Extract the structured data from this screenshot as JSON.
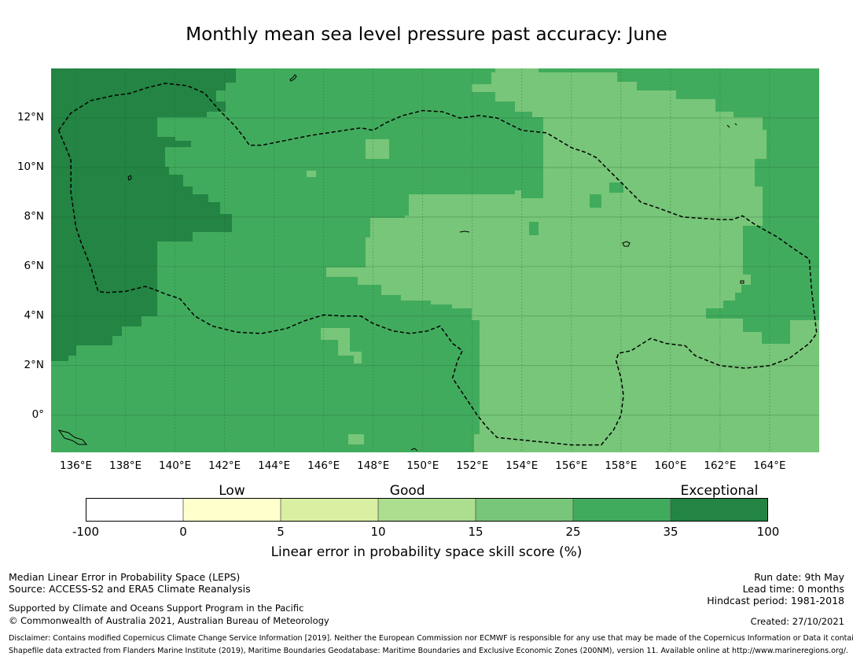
{
  "title": "Monthly mean sea level pressure past accuracy: June",
  "map": {
    "lon_range": [
      135.0,
      166.0
    ],
    "lat_range": [
      -1.5,
      14.0
    ],
    "x_ticks": [
      {
        "lon": 136,
        "label": "136°E"
      },
      {
        "lon": 138,
        "label": "138°E"
      },
      {
        "lon": 140,
        "label": "140°E"
      },
      {
        "lon": 142,
        "label": "142°E"
      },
      {
        "lon": 144,
        "label": "144°E"
      },
      {
        "lon": 146,
        "label": "146°E"
      },
      {
        "lon": 148,
        "label": "148°E"
      },
      {
        "lon": 150,
        "label": "150°E"
      },
      {
        "lon": 152,
        "label": "152°E"
      },
      {
        "lon": 154,
        "label": "154°E"
      },
      {
        "lon": 156,
        "label": "156°E"
      },
      {
        "lon": 158,
        "label": "158°E"
      },
      {
        "lon": 160,
        "label": "160°E"
      },
      {
        "lon": 162,
        "label": "162°E"
      },
      {
        "lon": 164,
        "label": "164°E"
      }
    ],
    "y_ticks": [
      {
        "lat": 12,
        "label": "12°N"
      },
      {
        "lat": 10,
        "label": "10°N"
      },
      {
        "lat": 8,
        "label": "8°N"
      },
      {
        "lat": 6,
        "label": "6°N"
      },
      {
        "lat": 4,
        "label": "4°N"
      },
      {
        "lat": 2,
        "label": "2°N"
      },
      {
        "lat": 0,
        "label": "0°"
      }
    ],
    "boundary_lonlat": [
      [
        135.3,
        11.5
      ],
      [
        135.8,
        12.2
      ],
      [
        136.6,
        12.7
      ],
      [
        137.5,
        12.9
      ],
      [
        138.2,
        13.0
      ],
      [
        138.8,
        13.2
      ],
      [
        139.6,
        13.4
      ],
      [
        140.5,
        13.3
      ],
      [
        141.2,
        13.0
      ],
      [
        141.8,
        12.3
      ],
      [
        142.4,
        11.7
      ],
      [
        142.8,
        11.2
      ],
      [
        143.0,
        10.9
      ],
      [
        143.5,
        10.9
      ],
      [
        144.5,
        11.1
      ],
      [
        145.5,
        11.3
      ],
      [
        146.5,
        11.45
      ],
      [
        147.5,
        11.6
      ],
      [
        148.0,
        11.5
      ],
      [
        148.5,
        11.8
      ],
      [
        149.2,
        12.1
      ],
      [
        150.0,
        12.3
      ],
      [
        150.8,
        12.25
      ],
      [
        151.5,
        12.0
      ],
      [
        152.3,
        12.1
      ],
      [
        153.0,
        12.0
      ],
      [
        153.6,
        11.7
      ],
      [
        154.0,
        11.5
      ],
      [
        155.0,
        11.4
      ],
      [
        156.0,
        10.8
      ],
      [
        156.6,
        10.6
      ],
      [
        157.0,
        10.4
      ],
      [
        157.5,
        9.9
      ],
      [
        158.2,
        9.2
      ],
      [
        158.8,
        8.6
      ],
      [
        159.4,
        8.4
      ],
      [
        160.5,
        8.0
      ],
      [
        162.0,
        7.9
      ],
      [
        162.5,
        7.9
      ],
      [
        162.9,
        8.05
      ],
      [
        163.4,
        7.7
      ],
      [
        164.3,
        7.2
      ],
      [
        165.0,
        6.7
      ],
      [
        165.6,
        6.3
      ],
      [
        165.7,
        5.0
      ],
      [
        165.9,
        3.3
      ],
      [
        165.6,
        2.9
      ],
      [
        164.8,
        2.3
      ],
      [
        164.0,
        2.0
      ],
      [
        163.0,
        1.9
      ],
      [
        162.0,
        2.0
      ],
      [
        161.0,
        2.4
      ],
      [
        160.6,
        2.8
      ],
      [
        159.8,
        2.9
      ],
      [
        159.2,
        3.1
      ],
      [
        158.4,
        2.6
      ],
      [
        157.9,
        2.5
      ],
      [
        157.8,
        2.2
      ],
      [
        158.0,
        1.5
      ],
      [
        158.1,
        0.8
      ],
      [
        158.0,
        0.0
      ],
      [
        157.7,
        -0.6
      ],
      [
        157.2,
        -1.2
      ],
      [
        156.0,
        -1.2
      ],
      [
        155.0,
        -1.1
      ],
      [
        154.0,
        -1.0
      ],
      [
        153.0,
        -0.9
      ],
      [
        152.6,
        -0.5
      ],
      [
        152.2,
        0.0
      ],
      [
        151.8,
        0.6
      ],
      [
        151.4,
        1.2
      ],
      [
        151.2,
        1.5
      ],
      [
        151.4,
        2.2
      ],
      [
        151.6,
        2.6
      ],
      [
        151.2,
        2.9
      ],
      [
        150.7,
        3.6
      ],
      [
        150.2,
        3.4
      ],
      [
        149.5,
        3.3
      ],
      [
        148.8,
        3.4
      ],
      [
        148.0,
        3.7
      ],
      [
        147.5,
        4.0
      ],
      [
        146.8,
        4.0
      ],
      [
        146.0,
        4.05
      ],
      [
        145.2,
        3.8
      ],
      [
        144.5,
        3.5
      ],
      [
        143.5,
        3.3
      ],
      [
        142.5,
        3.35
      ],
      [
        141.5,
        3.6
      ],
      [
        140.8,
        4.0
      ],
      [
        140.2,
        4.7
      ],
      [
        139.6,
        4.9
      ],
      [
        139.1,
        5.1
      ],
      [
        138.8,
        5.2
      ],
      [
        138.0,
        5.0
      ],
      [
        137.2,
        4.95
      ],
      [
        136.9,
        5.0
      ],
      [
        136.6,
        6.0
      ],
      [
        136.2,
        7.0
      ],
      [
        136.0,
        7.6
      ],
      [
        135.8,
        9.0
      ],
      [
        135.8,
        10.3
      ],
      [
        135.6,
        10.8
      ],
      [
        135.3,
        11.5
      ]
    ]
  },
  "legend": {
    "categories": [
      {
        "label": "Low",
        "center": 1.5
      },
      {
        "label": "Good",
        "center": 3.3
      },
      {
        "label": "Exceptional",
        "center": 6.5
      }
    ],
    "bins": [
      {
        "from": "-100",
        "to": "0",
        "color": "#ffffff"
      },
      {
        "from": "0",
        "to": "5",
        "color": "#ffffcc"
      },
      {
        "from": "5",
        "to": "10",
        "color": "#d9f0a3"
      },
      {
        "from": "10",
        "to": "15",
        "color": "#addd8e"
      },
      {
        "from": "15",
        "to": "25",
        "color": "#78c679"
      },
      {
        "from": "25",
        "to": "35",
        "color": "#41ab5d"
      },
      {
        "from": "35",
        "to": "100",
        "color": "#238443"
      }
    ],
    "tick_labels": [
      "-100",
      "0",
      "5",
      "10",
      "15",
      "25",
      "35",
      "100"
    ],
    "axis_label": "Linear error in probability space skill score (%)"
  },
  "footer": {
    "method": "Median Linear Error in Probability Space (LEPS)",
    "source": "Source: ACCESS-S2 and ERA5 Climate Reanalysis",
    "support": "Supported by Climate and Oceans Support Program in the Pacific",
    "copyright": "© Commonwealth of Australia 2021, Australian Bureau of Meteorology",
    "run_date": "Run date: 9th May",
    "lead_time": "Lead time: 0 months",
    "hindcast": "Hindcast period: 1981-2018",
    "created": "Created: 27/10/2021",
    "disclaimer": "Disclaimer: Contains modified Copernicus Climate Change Service Information [2019]. Neither the European Commission nor ECMWF is responsible for any use that may be made of the Copernicus Information or Data it contains.",
    "shapefile": "Shapefile data extracted from Flanders Marine Institute (2019), Maritime Boundaries Geodatabase: Maritime Boundaries and Exclusive Economic Zones (200NM), version 11. Available online at http://www.marineregions.org/."
  }
}
